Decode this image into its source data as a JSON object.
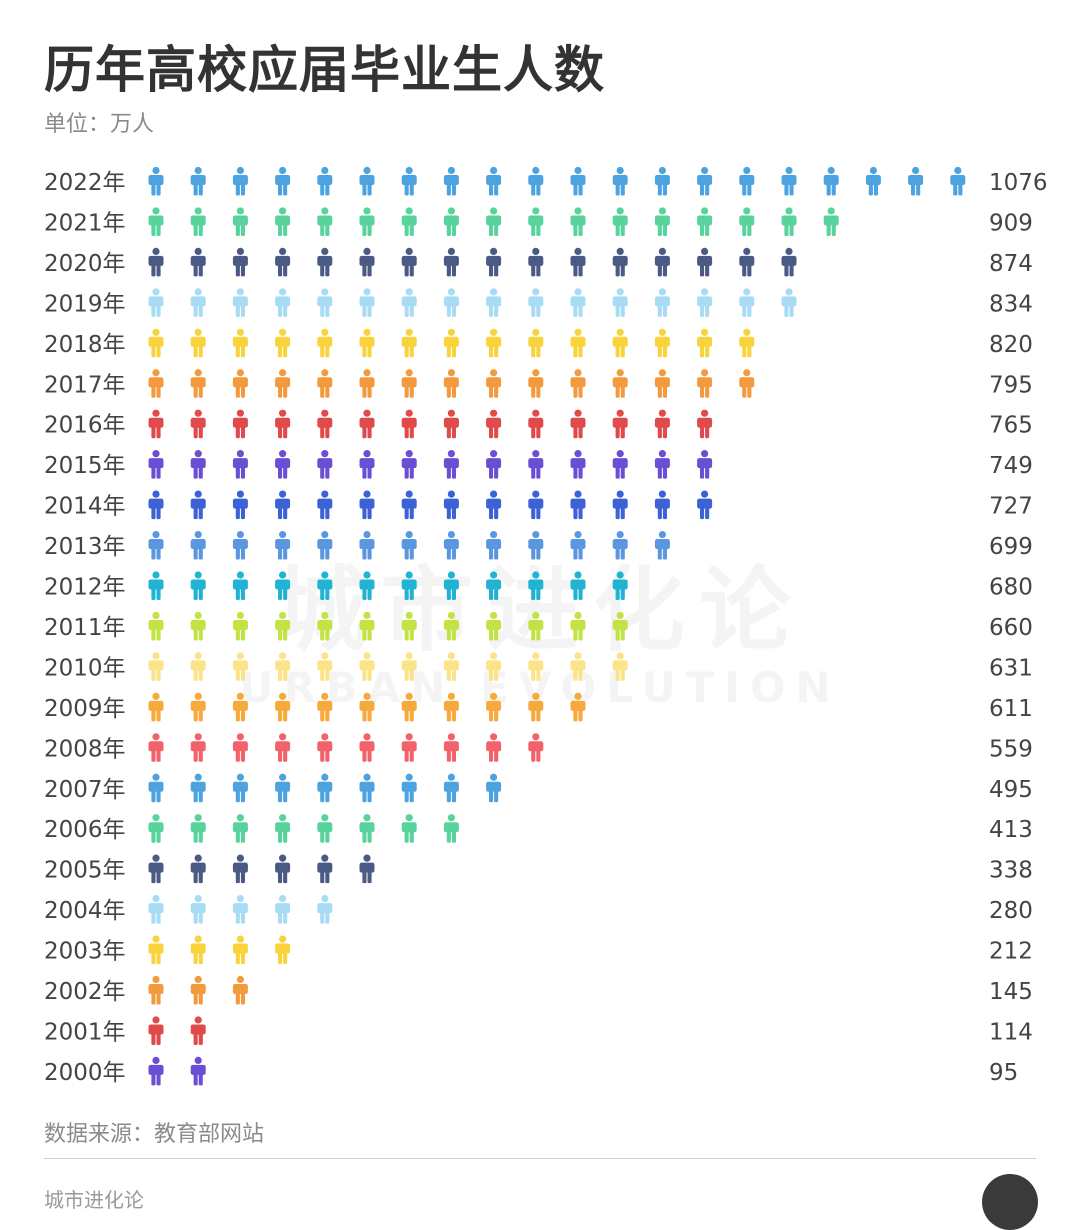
{
  "title": "历年高校应届毕业生人数",
  "unit": "单位：万人",
  "source": "数据来源：教育部网站",
  "footer_brand": "城市进化论",
  "watermark": {
    "cn": "城市进化论",
    "en": "URBAN EVOLUTION"
  },
  "chart_data": {
    "type": "pictograph",
    "icon": "person-icon",
    "categories": [
      "2022年",
      "2021年",
      "2020年",
      "2019年",
      "2018年",
      "2017年",
      "2016年",
      "2015年",
      "2014年",
      "2013年",
      "2012年",
      "2011年",
      "2010年",
      "2009年",
      "2008年",
      "2007年",
      "2006年",
      "2005年",
      "2004年",
      "2003年",
      "2002年",
      "2001年",
      "2000年"
    ],
    "values": [
      1076,
      909,
      874,
      834,
      820,
      795,
      765,
      749,
      727,
      699,
      680,
      660,
      631,
      611,
      559,
      495,
      413,
      338,
      280,
      212,
      145,
      114,
      95
    ],
    "icon_counts": [
      20,
      17,
      16,
      16,
      15,
      15,
      14,
      14,
      14,
      13,
      12,
      12,
      12,
      11,
      10,
      9,
      8,
      6,
      5,
      4,
      3,
      2,
      2
    ],
    "colors": [
      "#4da3e0",
      "#57d39b",
      "#4a5a85",
      "#a8dcf4",
      "#f9d33c",
      "#f39a3e",
      "#e04a4a",
      "#6a4fd4",
      "#3c62d6",
      "#5b97e0",
      "#21b3d3",
      "#c3e244",
      "#fbe38a",
      "#f7a93b",
      "#f3626b",
      "#4da3e0",
      "#57d39b",
      "#4a5a85",
      "#a8dcf4",
      "#f9d33c",
      "#f39a3e",
      "#e04a4a",
      "#6a4fd4"
    ]
  }
}
